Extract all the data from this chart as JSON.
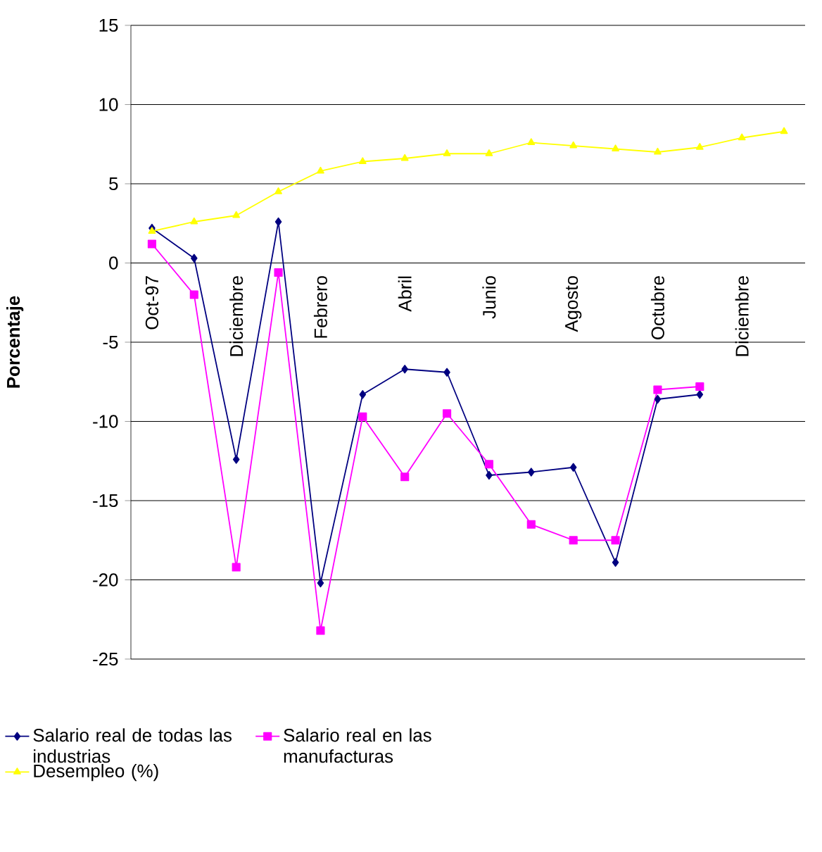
{
  "chart_data": {
    "type": "line",
    "ylabel": "Porcentaje",
    "categories": [
      "Oct-97",
      null,
      "Diciembre",
      null,
      "Febrero",
      null,
      "Abril",
      null,
      "Junio",
      null,
      "Agosto",
      null,
      "Octubre",
      null,
      "Diciembre",
      null
    ],
    "series": [
      {
        "name": "Salario real de todas las industrias",
        "color": "#000080",
        "marker": "diamond",
        "values": [
          2.2,
          0.3,
          -12.4,
          2.6,
          -20.2,
          -8.3,
          -6.7,
          -6.9,
          -13.4,
          -13.2,
          -12.9,
          -18.9,
          -8.6,
          -8.3,
          null,
          null
        ]
      },
      {
        "name": "Salario real en las manufacturas",
        "color": "#ff00ff",
        "marker": "square",
        "values": [
          1.2,
          -2.0,
          -19.2,
          -0.6,
          -23.2,
          -9.7,
          -13.5,
          -9.5,
          -12.7,
          -16.5,
          -17.5,
          -17.5,
          -8.0,
          -7.8,
          null,
          null
        ]
      },
      {
        "name": "Desempleo (%)",
        "color": "#ffff00",
        "marker": "triangle",
        "values": [
          2.0,
          2.6,
          3.0,
          4.5,
          5.8,
          6.4,
          6.6,
          6.9,
          6.9,
          7.6,
          7.4,
          7.2,
          7.0,
          7.3,
          7.9,
          8.3
        ]
      }
    ],
    "ylim": [
      -25,
      15
    ],
    "yticks": [
      -25,
      -20,
      -15,
      -10,
      -5,
      0,
      5,
      10,
      15
    ],
    "grid": "y",
    "legend": "bottom"
  }
}
